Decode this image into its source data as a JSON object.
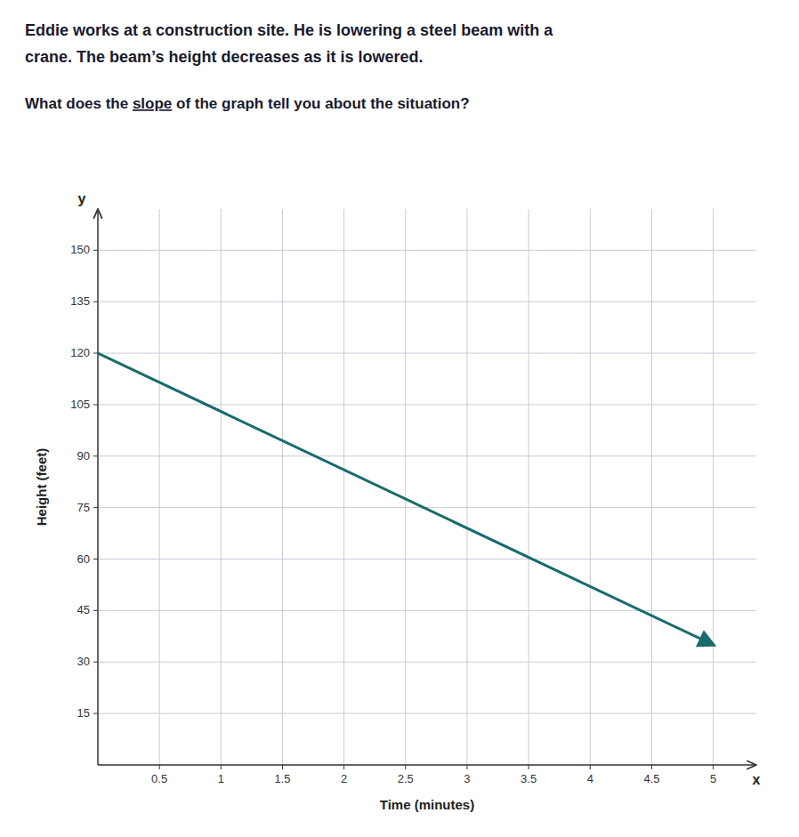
{
  "chart_data": {
    "type": "line",
    "title": [
      "Eddie works at a construction site.  He is lowering a steel beam with a",
      "crane.  The beam’s height decreases as it is lowered."
    ],
    "annotations": [
      "What does the ",
      "slope",
      " of the graph tell you about the situation?",
      "x",
      "y"
    ],
    "x_label": "Time (minutes)",
    "y_label": "Height (feet)",
    "x": [
      0,
      5
    ],
    "values": [
      120,
      35
    ],
    "color": "#1a6b6b",
    "xlim": [
      0,
      5.35
    ],
    "ylim": [
      0,
      162
    ],
    "xticks": [
      0.5,
      1,
      1.5,
      2,
      2.5,
      3,
      3.5,
      4,
      4.5,
      5
    ],
    "yticks": [
      15,
      30,
      45,
      60,
      75,
      90,
      105,
      120,
      135,
      150
    ],
    "grid": true
  }
}
